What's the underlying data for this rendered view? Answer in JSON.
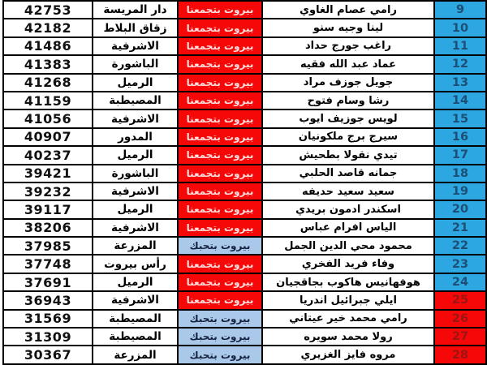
{
  "lists": {
    "red_label": "بيروت بتجمعنا",
    "blue_label": "بيروت بتحبك"
  },
  "colors": {
    "list_red_bg": "#f70808",
    "list_red_text": "#ffdede",
    "list_blue_bg": "#aac9ea",
    "list_blue_text": "#16233f",
    "rank_blue_bg": "#2ca7e1",
    "rank_blue_text": "#1d4f75",
    "rank_red_bg": "#f70808",
    "rank_red_text": "#9c1414",
    "border": "#000000",
    "row_bg": "#ffffff"
  },
  "rows": [
    {
      "votes": "42753",
      "district": "دار المريسة",
      "list_label": "بيروت بتجمعنا",
      "list_color": "red",
      "name": "رامي عصام الغاوي",
      "rank": "9",
      "rank_color": "blue"
    },
    {
      "votes": "42182",
      "district": "زقاق البلاط",
      "list_label": "بيروت بتجمعنا",
      "list_color": "red",
      "name": "لينا وجيه سنو",
      "rank": "10",
      "rank_color": "blue"
    },
    {
      "votes": "41486",
      "district": "الاشرفية",
      "list_label": "بيروت بتجمعنا",
      "list_color": "red",
      "name": "راغب جورج حداد",
      "rank": "11",
      "rank_color": "blue"
    },
    {
      "votes": "41383",
      "district": "الباشورة",
      "list_label": "بيروت بتجمعنا",
      "list_color": "red",
      "name": "عماد عبد الله فقيه",
      "rank": "12",
      "rank_color": "blue"
    },
    {
      "votes": "41268",
      "district": "الرميل",
      "list_label": "بيروت بتجمعنا",
      "list_color": "red",
      "name": "جويل جوزف مراد",
      "rank": "13",
      "rank_color": "blue"
    },
    {
      "votes": "41159",
      "district": "المصيطبة",
      "list_label": "بيروت بتجمعنا",
      "list_color": "red",
      "name": "رشا وسام فتوح",
      "rank": "14",
      "rank_color": "blue"
    },
    {
      "votes": "41056",
      "district": "الاشرفية",
      "list_label": "بيروت بتجمعنا",
      "list_color": "red",
      "name": "لويس جوزيف ايوب",
      "rank": "15",
      "rank_color": "blue"
    },
    {
      "votes": "40907",
      "district": "المدور",
      "list_label": "بيروت بتجمعنا",
      "list_color": "red",
      "name": "سيرج برج ملكونيان",
      "rank": "16",
      "rank_color": "blue"
    },
    {
      "votes": "40237",
      "district": "الرميل",
      "list_label": "بيروت بتجمعنا",
      "list_color": "red",
      "name": "تيدي نقولا بطحيش",
      "rank": "17",
      "rank_color": "blue"
    },
    {
      "votes": "39421",
      "district": "الباشورة",
      "list_label": "بيروت بتجمعنا",
      "list_color": "red",
      "name": "جمانه قاصد الحلبي",
      "rank": "18",
      "rank_color": "blue"
    },
    {
      "votes": "39232",
      "district": "الاشرفية",
      "list_label": "بيروت بتجمعنا",
      "list_color": "red",
      "name": "سعيد سعيد حديفه",
      "rank": "19",
      "rank_color": "blue"
    },
    {
      "votes": "39117",
      "district": "الرميل",
      "list_label": "بيروت بتجمعنا",
      "list_color": "red",
      "name": "اسكندر ادمون بريدي",
      "rank": "20",
      "rank_color": "blue"
    },
    {
      "votes": "38206",
      "district": "الاشرفية",
      "list_label": "بيروت بتجمعنا",
      "list_color": "red",
      "name": "الياس افرام عباس",
      "rank": "21",
      "rank_color": "blue"
    },
    {
      "votes": "37985",
      "district": "المزرعة",
      "list_label": "بيروت بتحبك",
      "list_color": "blue",
      "name": "محمود محي الدين الجمل",
      "rank": "22",
      "rank_color": "blue"
    },
    {
      "votes": "37748",
      "district": "رأس بيروت",
      "list_label": "بيروت بتجمعنا",
      "list_color": "red",
      "name": "وفاء فريد الفخري",
      "rank": "23",
      "rank_color": "blue"
    },
    {
      "votes": "37691",
      "district": "الرميل",
      "list_label": "بيروت بتجمعنا",
      "list_color": "red",
      "name": "هوفهانيس هاكوب بجاقجيان",
      "rank": "24",
      "rank_color": "blue"
    },
    {
      "votes": "36943",
      "district": "الاشرفية",
      "list_label": "بيروت بتجمعنا",
      "list_color": "red",
      "name": "ايلي جبرائيل اندريا",
      "rank": "25",
      "rank_color": "red"
    },
    {
      "votes": "31569",
      "district": "المصيطبة",
      "list_label": "بيروت بتحبك",
      "list_color": "blue",
      "name": "رامي محمد خير عيتاني",
      "rank": "26",
      "rank_color": "red"
    },
    {
      "votes": "31309",
      "district": "المصيطبة",
      "list_label": "بيروت بتحبك",
      "list_color": "blue",
      "name": "رولا محمد سويره",
      "rank": "27",
      "rank_color": "red"
    },
    {
      "votes": "30367",
      "district": "المزرعة",
      "list_label": "بيروت بتحبك",
      "list_color": "blue",
      "name": "مروه فايز الغزيري",
      "rank": "28",
      "rank_color": "red"
    },
    {
      "votes": "",
      "district": "",
      "list_label": "",
      "list_color": "blue",
      "name": "",
      "rank": "",
      "rank_color": "red"
    }
  ]
}
